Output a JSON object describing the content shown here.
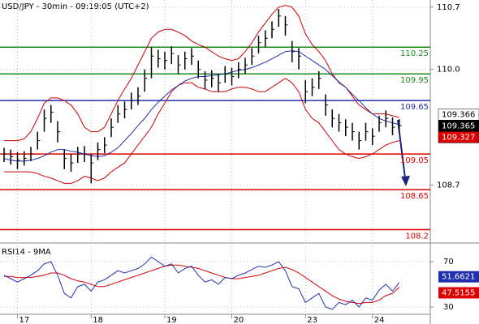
{
  "chart_data": [
    {
      "type": "ohlc",
      "title": "USD/JPY - 30min - 09:19:05 (UTC+2)",
      "categories": [
        null,
        null,
        "17",
        null,
        null,
        null,
        null,
        null,
        null,
        null,
        null,
        null,
        null,
        "18",
        null,
        null,
        null,
        null,
        null,
        null,
        null,
        null,
        null,
        null,
        "19",
        null,
        null,
        null,
        null,
        null,
        null,
        null,
        null,
        null,
        "20",
        null,
        null,
        null,
        null,
        null,
        null,
        null,
        null,
        null,
        null,
        "23",
        null,
        null,
        null,
        null,
        null,
        null,
        null,
        null,
        null,
        "24",
        null,
        null,
        null,
        null
      ],
      "high": [
        109.12,
        109.1,
        109.07,
        109.08,
        109.13,
        109.3,
        109.55,
        109.6,
        109.42,
        109.1,
        109.05,
        109.13,
        109.14,
        109.05,
        109.18,
        109.24,
        109.45,
        109.6,
        109.64,
        109.74,
        109.8,
        110.0,
        110.25,
        110.22,
        110.2,
        110.26,
        110.16,
        110.2,
        110.24,
        110.1,
        109.98,
        109.99,
        109.95,
        110.04,
        110.02,
        110.08,
        110.13,
        110.24,
        110.38,
        110.44,
        110.54,
        110.68,
        110.6,
        110.32,
        110.24,
        109.88,
        109.9,
        109.98,
        109.72,
        109.55,
        109.5,
        109.44,
        109.4,
        109.3,
        109.4,
        109.34,
        109.48,
        109.54,
        109.46,
        109.44
      ],
      "low": [
        108.96,
        108.93,
        108.88,
        108.92,
        108.97,
        109.1,
        109.3,
        109.4,
        109.18,
        108.88,
        108.85,
        108.95,
        108.96,
        108.72,
        108.98,
        109.06,
        109.24,
        109.4,
        109.45,
        109.55,
        109.6,
        109.75,
        109.9,
        110.02,
        110.0,
        110.06,
        109.95,
        110.0,
        110.05,
        109.9,
        109.78,
        109.8,
        109.75,
        109.85,
        109.82,
        109.9,
        109.95,
        110.05,
        110.18,
        110.25,
        110.35,
        110.48,
        110.38,
        110.08,
        110.0,
        109.62,
        109.7,
        109.78,
        109.48,
        109.35,
        109.3,
        109.25,
        109.2,
        109.1,
        109.2,
        109.15,
        109.3,
        109.35,
        109.26,
        109.3
      ],
      "close": [
        109.05,
        109.02,
        108.98,
        109.0,
        109.05,
        109.2,
        109.45,
        109.52,
        109.3,
        109.0,
        108.95,
        109.05,
        109.05,
        108.95,
        109.1,
        109.15,
        109.35,
        109.5,
        109.55,
        109.65,
        109.7,
        109.9,
        110.15,
        110.12,
        110.1,
        110.18,
        110.05,
        110.12,
        110.15,
        110.0,
        109.88,
        109.9,
        109.85,
        109.95,
        109.92,
        110.0,
        110.05,
        110.15,
        110.3,
        110.35,
        110.45,
        110.6,
        110.5,
        110.2,
        110.15,
        109.75,
        109.8,
        109.9,
        109.6,
        109.45,
        109.4,
        109.35,
        109.3,
        109.2,
        109.3,
        109.25,
        109.4,
        109.45,
        109.35,
        109.37
      ],
      "bb_upper": [
        109.2,
        109.2,
        109.2,
        109.22,
        109.3,
        109.45,
        109.62,
        109.68,
        109.68,
        109.65,
        109.6,
        109.5,
        109.35,
        109.3,
        109.3,
        109.35,
        109.5,
        109.65,
        109.78,
        109.9,
        110.05,
        110.2,
        110.35,
        110.42,
        110.45,
        110.45,
        110.42,
        110.38,
        110.32,
        110.28,
        110.25,
        110.2,
        110.15,
        110.12,
        110.1,
        110.12,
        110.2,
        110.3,
        110.42,
        110.52,
        110.62,
        110.7,
        110.72,
        110.7,
        110.6,
        110.4,
        110.28,
        110.2,
        110.1,
        109.95,
        109.85,
        109.8,
        109.7,
        109.6,
        109.55,
        109.5,
        109.5,
        109.5,
        109.48,
        109.46
      ],
      "bb_lower": [
        108.85,
        108.85,
        108.85,
        108.85,
        108.85,
        108.83,
        108.8,
        108.78,
        108.75,
        108.72,
        108.72,
        108.75,
        108.8,
        108.78,
        108.75,
        108.78,
        108.85,
        108.9,
        108.95,
        109.05,
        109.15,
        109.25,
        109.35,
        109.5,
        109.62,
        109.75,
        109.82,
        109.85,
        109.85,
        109.8,
        109.78,
        109.75,
        109.75,
        109.75,
        109.78,
        109.8,
        109.8,
        109.78,
        109.75,
        109.75,
        109.8,
        109.85,
        109.9,
        109.85,
        109.75,
        109.55,
        109.45,
        109.4,
        109.3,
        109.2,
        109.1,
        109.05,
        109.02,
        109.0,
        109.02,
        109.05,
        109.1,
        109.15,
        109.18,
        109.2
      ],
      "ma": [
        109.0,
        108.98,
        108.97,
        108.97,
        108.98,
        109.0,
        109.03,
        109.07,
        109.1,
        109.1,
        109.08,
        109.07,
        109.05,
        109.03,
        109.02,
        109.03,
        109.07,
        109.12,
        109.2,
        109.28,
        109.37,
        109.45,
        109.55,
        109.63,
        109.7,
        109.77,
        109.82,
        109.87,
        109.9,
        109.92,
        109.92,
        109.93,
        109.94,
        109.95,
        109.97,
        109.99,
        110.0,
        110.02,
        110.05,
        110.08,
        110.12,
        110.16,
        110.2,
        110.21,
        110.2,
        110.15,
        110.1,
        110.05,
        110.0,
        109.93,
        109.86,
        109.8,
        109.72,
        109.65,
        109.57,
        109.5,
        109.45,
        109.42,
        109.4,
        109.38
      ],
      "bar_color": "#000000",
      "band_color": "#cc0000",
      "ma_color": "#1f2fb0",
      "levels": [
        110.25,
        109.95,
        109.65,
        109.05,
        108.65,
        108.2
      ],
      "level_colors": [
        "#1a8a1a",
        "#1a8a1a",
        "#1f2fb0",
        "#dd0000",
        "#dd0000",
        "#dd0000"
      ],
      "price_labels": [
        109.366,
        109.365,
        109.327
      ],
      "price_label_colors": [
        "#ffffff",
        "#000000",
        "#dd0000"
      ],
      "ylim": [
        108.05,
        110.78
      ],
      "yticks": [
        110.7,
        {
          "value": 110,
          "label": "110.0"
        },
        108.7
      ],
      "grid": true
    },
    {
      "type": "line",
      "title": "RSI14 - 9MA",
      "series": [
        {
          "color": "#1f2fb0",
          "values": [
            58,
            55,
            52,
            55,
            58,
            62,
            68,
            70,
            58,
            42,
            38,
            48,
            50,
            44,
            52,
            54,
            58,
            62,
            60,
            62,
            64,
            68,
            74,
            70,
            66,
            68,
            60,
            64,
            66,
            58,
            52,
            54,
            50,
            56,
            55,
            58,
            60,
            63,
            66,
            65,
            67,
            70,
            62,
            48,
            46,
            34,
            38,
            42,
            30,
            28,
            34,
            32,
            36,
            30,
            38,
            36,
            45,
            50,
            44,
            51.6621
          ]
        },
        {
          "color": "#dd0000",
          "values": [
            57,
            57,
            56,
            56,
            56,
            57,
            58,
            60,
            60,
            58,
            55,
            53,
            52,
            50,
            48,
            48,
            50,
            52,
            54,
            56,
            58,
            60,
            62,
            64,
            66,
            67,
            67,
            66,
            65,
            64,
            62,
            60,
            58,
            56,
            55,
            55,
            56,
            57,
            58,
            60,
            62,
            64,
            65,
            63,
            60,
            56,
            52,
            48,
            44,
            40,
            37,
            35,
            34,
            33,
            34,
            34,
            36,
            40,
            42,
            47.5155
          ]
        }
      ],
      "ylim": [
        20,
        80
      ],
      "yticks": [
        70,
        30
      ]
    }
  ]
}
